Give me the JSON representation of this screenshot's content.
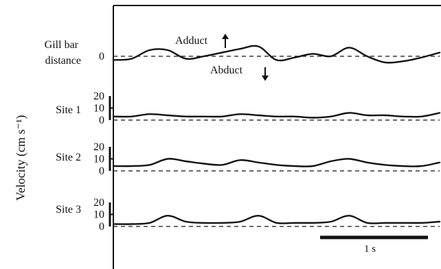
{
  "chart_data": {
    "type": "line",
    "ylabel_left": "Velocity (cm s⁻¹)",
    "annotations": {
      "adduct": "Adduct",
      "abduct": "Abduct"
    },
    "scale_bar": {
      "label": "1 s",
      "duration_s": 1
    },
    "time_s": [
      0,
      0.2,
      0.4,
      0.6,
      0.8,
      1.0,
      1.2,
      1.4,
      1.6,
      1.8,
      2.0,
      2.2,
      2.4,
      2.6,
      2.8,
      3.0,
      3.2,
      3.4,
      3.6
    ],
    "panels": [
      {
        "label": "Gill bar distance",
        "ticks": [
          "0"
        ],
        "ylim": [
          -1,
          1
        ],
        "values": [
          -0.3,
          -0.2,
          0.5,
          0.5,
          -0.2,
          0.0,
          0.3,
          0.6,
          0.8,
          -0.3,
          -0.1,
          0.2,
          0.0,
          0.7,
          0.0,
          -0.5,
          -0.4,
          -0.1,
          0.3
        ]
      },
      {
        "label": "Site 1",
        "ticks": [
          "20",
          "10",
          "0"
        ],
        "ylim": [
          0,
          20
        ],
        "values": [
          3,
          3,
          5,
          4,
          3,
          3,
          3,
          5,
          4,
          3,
          3,
          2,
          3,
          6,
          4,
          4,
          3,
          3,
          6
        ]
      },
      {
        "label": "Site 2",
        "ticks": [
          "20",
          "10",
          "0"
        ],
        "ylim": [
          0,
          20
        ],
        "values": [
          4,
          4,
          5,
          10,
          8,
          6,
          5,
          9,
          7,
          5,
          4,
          4,
          8,
          10,
          7,
          5,
          4,
          4,
          7
        ]
      },
      {
        "label": "Site 3",
        "ticks": [
          "20",
          "10",
          "0"
        ],
        "ylim": [
          0,
          20
        ],
        "values": [
          2,
          2,
          3,
          9,
          4,
          3,
          3,
          4,
          9,
          3,
          3,
          3,
          4,
          9,
          3,
          3,
          3,
          3,
          4
        ]
      }
    ]
  }
}
